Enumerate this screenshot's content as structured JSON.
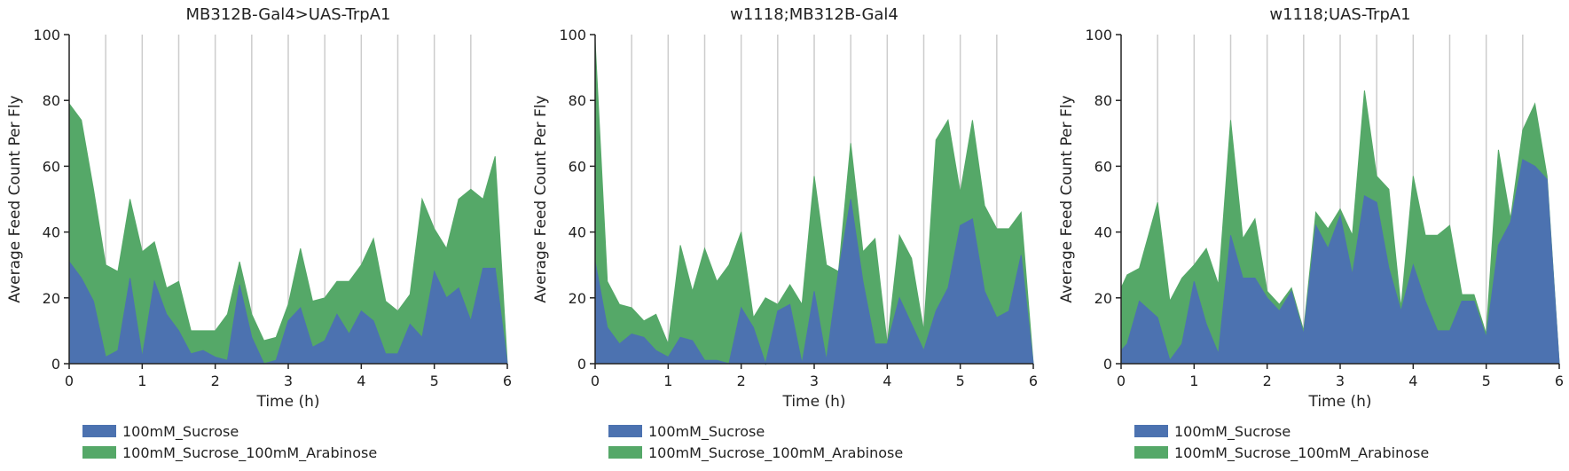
{
  "colors": {
    "sucrose": "#4c72b0",
    "arabinose": "#55a868",
    "grid": "#cccccc",
    "axis": "#222222"
  },
  "legend": [
    "100mM_Sucrose",
    "100mM_Sucrose_100mM_Arabinose"
  ],
  "chart_data": [
    {
      "type": "area",
      "stacked": true,
      "title": "MB312B-Gal4>UAS-TrpA1",
      "xlabel": "Time (h)",
      "ylabel": "Average Feed Count Per Fly",
      "xlim": [
        0,
        6
      ],
      "ylim": [
        0,
        100
      ],
      "xticks": [
        0,
        1,
        2,
        3,
        4,
        5,
        6
      ],
      "yticks": [
        0,
        20,
        40,
        60,
        80,
        100
      ],
      "grid_x": [
        0.5,
        1,
        1.5,
        2,
        2.5,
        3,
        3.5,
        4,
        4.5,
        5,
        5.5
      ],
      "x": [
        0,
        0.167,
        0.333,
        0.5,
        0.667,
        0.833,
        1,
        1.167,
        1.333,
        1.5,
        1.667,
        1.833,
        2,
        2.167,
        2.333,
        2.5,
        2.667,
        2.833,
        3,
        3.167,
        3.333,
        3.5,
        3.667,
        3.833,
        4,
        4.167,
        4.333,
        4.5,
        4.667,
        4.833,
        5,
        5.167,
        5.333,
        5.5,
        5.667,
        5.833,
        6
      ],
      "series": [
        {
          "name": "100mM_Sucrose",
          "values": [
            31,
            26,
            19,
            2,
            4,
            26,
            2,
            25,
            15,
            10,
            3,
            4,
            2,
            1,
            24,
            8,
            0,
            1,
            13,
            17,
            5,
            7,
            15,
            9,
            16,
            13,
            3,
            3,
            12,
            8,
            28,
            20,
            23,
            13,
            29,
            29,
            0
          ]
        },
        {
          "name": "100mM_Sucrose_100mM_Arabinose",
          "values": [
            48,
            48,
            34,
            28,
            24,
            24,
            32,
            12,
            8,
            15,
            7,
            6,
            8,
            14,
            7,
            7,
            7,
            7,
            5,
            18,
            14,
            13,
            10,
            16,
            14,
            25,
            16,
            13,
            9,
            42,
            13,
            15,
            27,
            40,
            21,
            34,
            0
          ]
        }
      ]
    },
    {
      "type": "area",
      "stacked": true,
      "title": "w1118;MB312B-Gal4",
      "xlabel": "Time (h)",
      "ylabel": "Average Feed Count Per Fly",
      "xlim": [
        0,
        6
      ],
      "ylim": [
        0,
        100
      ],
      "xticks": [
        0,
        1,
        2,
        3,
        4,
        5,
        6
      ],
      "yticks": [
        0,
        20,
        40,
        60,
        80,
        100
      ],
      "grid_x": [
        0.5,
        1,
        1.5,
        2,
        2.5,
        3,
        3.5,
        4,
        4.5,
        5,
        5.5
      ],
      "x": [
        0,
        0.167,
        0.333,
        0.5,
        0.667,
        0.833,
        1,
        1.167,
        1.333,
        1.5,
        1.667,
        1.833,
        2,
        2.167,
        2.333,
        2.5,
        2.667,
        2.833,
        3,
        3.167,
        3.333,
        3.5,
        3.667,
        3.833,
        4,
        4.167,
        4.333,
        4.5,
        4.667,
        4.833,
        5,
        5.167,
        5.333,
        5.5,
        5.667,
        5.833,
        6
      ],
      "series": [
        {
          "name": "100mM_Sucrose",
          "values": [
            31,
            11,
            6,
            9,
            8,
            4,
            2,
            8,
            7,
            1,
            1,
            0,
            17,
            11,
            0,
            16,
            18,
            0,
            22,
            1,
            28,
            50,
            25,
            6,
            6,
            20,
            12,
            4,
            16,
            23,
            42,
            44,
            22,
            14,
            16,
            33,
            0
          ]
        },
        {
          "name": "100mM_Sucrose_100mM_Arabinose",
          "values": [
            67,
            14,
            12,
            8,
            5,
            11,
            4,
            28,
            15,
            34,
            24,
            30,
            23,
            3,
            20,
            2,
            6,
            18,
            35,
            29,
            0,
            17,
            9,
            32,
            0,
            19,
            20,
            6,
            52,
            51,
            10,
            30,
            26,
            27,
            25,
            13,
            0
          ]
        }
      ]
    },
    {
      "type": "area",
      "stacked": true,
      "title": "w1118;UAS-TrpA1",
      "xlabel": "Time (h)",
      "ylabel": "Average Feed Count Per Fly",
      "xlim": [
        0,
        6
      ],
      "ylim": [
        0,
        100
      ],
      "xticks": [
        0,
        1,
        2,
        3,
        4,
        5,
        6
      ],
      "yticks": [
        0,
        20,
        40,
        60,
        80,
        100
      ],
      "grid_x": [
        0.5,
        1,
        1.5,
        2,
        2.5,
        3,
        3.5,
        4,
        4.5,
        5,
        5.5
      ],
      "x": [
        0,
        0.083,
        0.25,
        0.5,
        0.667,
        0.833,
        1,
        1.167,
        1.333,
        1.5,
        1.667,
        1.833,
        2,
        2.167,
        2.333,
        2.5,
        2.667,
        2.833,
        3,
        3.167,
        3.333,
        3.5,
        3.667,
        3.833,
        4,
        4.167,
        4.333,
        4.5,
        4.667,
        4.833,
        5,
        5.167,
        5.333,
        5.5,
        5.667,
        5.833,
        6
      ],
      "series": [
        {
          "name": "100mM_Sucrose",
          "values": [
            4,
            6,
            19,
            14,
            1,
            6,
            25,
            12,
            3,
            39,
            26,
            26,
            20,
            16,
            22,
            9,
            42,
            35,
            45,
            27,
            51,
            49,
            29,
            16,
            30,
            19,
            10,
            10,
            19,
            19,
            8,
            36,
            43,
            62,
            60,
            56,
            0
          ]
        },
        {
          "name": "100mM_Sucrose_100mM_Arabinose",
          "values": [
            19,
            21,
            10,
            35,
            18,
            20,
            5,
            23,
            21,
            35,
            12,
            18,
            2,
            2,
            1,
            1,
            4,
            6,
            2,
            12,
            32,
            8,
            24,
            1,
            27,
            20,
            29,
            32,
            2,
            2,
            1,
            29,
            1,
            9,
            19,
            1,
            0
          ]
        }
      ]
    }
  ]
}
